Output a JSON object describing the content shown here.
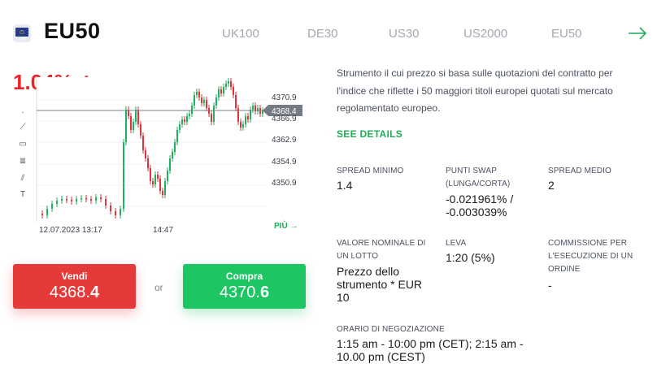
{
  "instrument": {
    "flag_code": "50",
    "symbol": "EU50",
    "change_percent": "1.04%",
    "change_icon": "arrow-down-small"
  },
  "tabs": [
    "UK100",
    "DE30",
    "US30",
    "US2000",
    "EU50"
  ],
  "chart": {
    "y_ticks": [
      "4370.9",
      "4366.9",
      "4362.9",
      "4354.9",
      "4350.9"
    ],
    "current_price_tag": "4368.4",
    "x_labels": [
      "12.07.2023 13:17",
      "14:47"
    ],
    "more_link": "PIÙ →",
    "colors": {
      "up": "#20b05e",
      "down": "#e2333a",
      "price_line": "#7a8088"
    }
  },
  "trade": {
    "sell_label": "Vendi",
    "sell_price_main": "4368.",
    "sell_price_last": "4",
    "or_label": "or",
    "buy_label": "Compra",
    "buy_price_main": "4370.",
    "buy_price_last": "6"
  },
  "info": {
    "description": "Strumento il cui prezzo si basa sulle quotazioni del contratto per l'indice che riflette i 50 maggiori titoli europei quotati sul mercato regolamentato europeo.",
    "details_link": "SEE DETAILS",
    "spread_min_label": "SPREAD MINIMO",
    "spread_min_value": "1.4",
    "swap_label_1": "PUNTI SWAP",
    "swap_label_2": "(LUNGA/CORTA)",
    "swap_value_1": "-0.021961% /",
    "swap_value_2": "-0.003039%",
    "spread_avg_label": "SPREAD MEDIO",
    "spread_avg_value": "2",
    "nominal_label_1": "VALORE NOMINALE DI",
    "nominal_label_2": "UN LOTTO",
    "nominal_value_1": "Prezzo dello",
    "nominal_value_2": "strumento * EUR",
    "nominal_value_3": "10",
    "leverage_label": "LEVA",
    "leverage_value": "1:20 (5%)",
    "commission_label_1": "COMMISSIONE PER",
    "commission_label_2": "L'ESECUZIONE DI UN",
    "commission_label_3": "ORDINE",
    "commission_value": "-",
    "hours_label": "ORARIO DI NEGOZIAZIONE",
    "hours_value_1": "1:15 am - 10:00 pm (CET); 2:15 am -",
    "hours_value_2": "10.00 pm (CEST)"
  }
}
